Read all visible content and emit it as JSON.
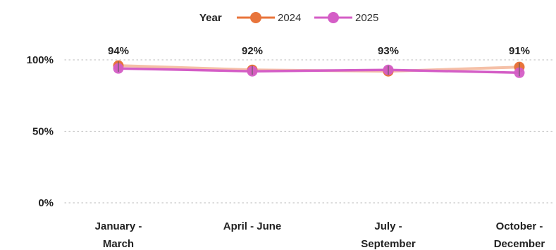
{
  "chart_data": {
    "type": "line",
    "legend_title": "Year",
    "legend_position": "top-center",
    "categories": [
      [
        "January -",
        "March"
      ],
      [
        "April - June"
      ],
      [
        "July -",
        "September"
      ],
      [
        "October -",
        "December"
      ]
    ],
    "series": [
      {
        "name": "2024",
        "color": "#E8743B",
        "values": [
          0.96,
          0.93,
          0.92,
          0.95
        ]
      },
      {
        "name": "2025",
        "color": "#D45DC6",
        "values": [
          0.94,
          0.92,
          0.93,
          0.91
        ]
      }
    ],
    "data_labels": [
      "94%",
      "92%",
      "93%",
      "91%"
    ],
    "y_ticks": [
      "0%",
      "50%",
      "100%"
    ],
    "ylim": [
      0,
      1.0
    ],
    "grid": true
  }
}
